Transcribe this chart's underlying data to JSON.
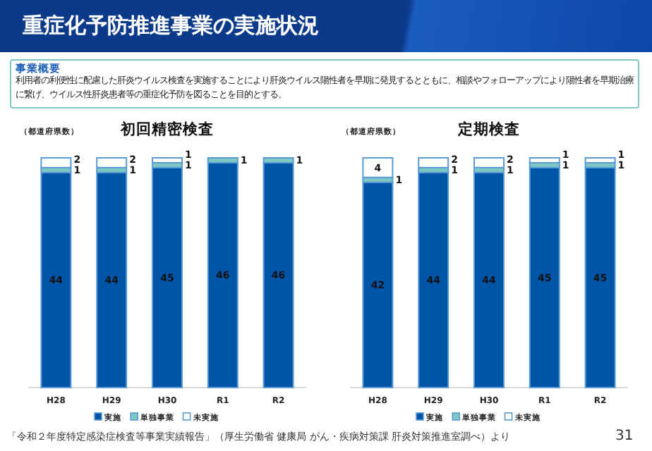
{
  "chart_data": [
    {
      "type": "other",
      "title": "重症化予防推進事業の実施状況",
      "annotations": [
        "事業概要",
        "利用者の利便性に配慮した肝炎ウイルス検査を実施することにより肝炎ウイルス陽性者を早期に発見するとともに、相談やフォローアップにより陽性者を早期治療に繋げ、ウイルス性肝炎患者等の重症化予防を図ることを目的とする。",
        "「令和２年度特定感染症検査等事業実績報告」（厚生労働省 健康局 がん・疾病対策課 肝炎対策推進室調べ）より",
        "31"
      ]
    },
    {
      "type": "bar",
      "title": "初回精密検査",
      "ylabel": "（都道府県数）",
      "stacked": true,
      "data_labels": true,
      "legend": "bottom",
      "categories": [
        "H28",
        "H29",
        "H30",
        "R1",
        "R2"
      ],
      "series": [
        {
          "name": "実施",
          "color": "#0055a8",
          "values": [
            44,
            44,
            45,
            46,
            46
          ]
        },
        {
          "name": "単独事業",
          "color": "#7fc9c5",
          "values": [
            1,
            1,
            1,
            1,
            1
          ]
        },
        {
          "name": "未実施",
          "color": "#ffffff",
          "values": [
            2,
            2,
            1,
            null,
            null
          ]
        }
      ]
    },
    {
      "type": "bar",
      "title": "定期検査",
      "ylabel": "（都道府県数）",
      "stacked": true,
      "data_labels": true,
      "legend": "bottom",
      "categories": [
        "H28",
        "H29",
        "H30",
        "R1",
        "R2"
      ],
      "series": [
        {
          "name": "実施",
          "color": "#0055a8",
          "values": [
            42,
            44,
            44,
            45,
            45
          ]
        },
        {
          "name": "単独事業",
          "color": "#7fc9c5",
          "values": [
            1,
            1,
            1,
            1,
            1
          ]
        },
        {
          "name": "未実施",
          "color": "#ffffff",
          "values": [
            4,
            2,
            2,
            1,
            1
          ]
        }
      ]
    }
  ]
}
